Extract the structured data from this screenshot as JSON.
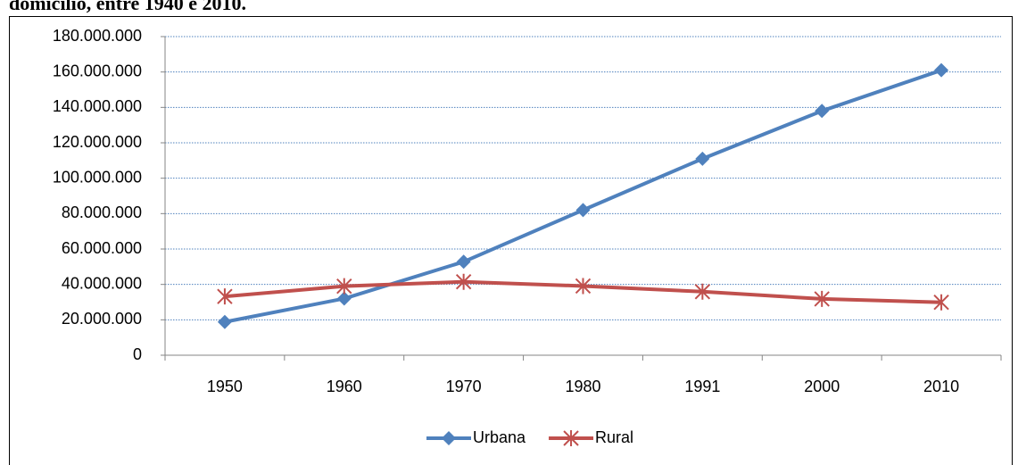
{
  "chart_data": {
    "type": "line",
    "title": "domicílio, entre 1940 e 2010.",
    "categories": [
      "1950",
      "1960",
      "1970",
      "1980",
      "1991",
      "2000",
      "2010"
    ],
    "series": [
      {
        "name": "Urbana",
        "color": "#4f81bd",
        "marker": "diamond",
        "values": [
          18800000,
          32000000,
          52800000,
          82000000,
          111000000,
          138000000,
          161000000
        ]
      },
      {
        "name": "Rural",
        "color": "#c0504d",
        "marker": "asterisk",
        "values": [
          33200000,
          39000000,
          41500000,
          39100000,
          35900000,
          31800000,
          29900000
        ]
      }
    ],
    "ylim": [
      0,
      180000000
    ],
    "yticks": [
      0,
      {
        "value": 20000000,
        "label": "20.000.000"
      },
      {
        "value": 40000000,
        "label": "40.000.000"
      },
      {
        "value": 60000000,
        "label": "60.000.000"
      },
      {
        "value": 80000000,
        "label": "80.000.000"
      },
      {
        "value": 100000000,
        "label": "100.000.000"
      },
      {
        "value": 120000000,
        "label": "120.000.000"
      },
      {
        "value": 140000000,
        "label": "140.000.000"
      },
      {
        "value": 160000000,
        "label": "160.000.000"
      },
      {
        "value": 180000000,
        "label": "180.000.000"
      }
    ],
    "grid": true,
    "legend": "bottom"
  }
}
